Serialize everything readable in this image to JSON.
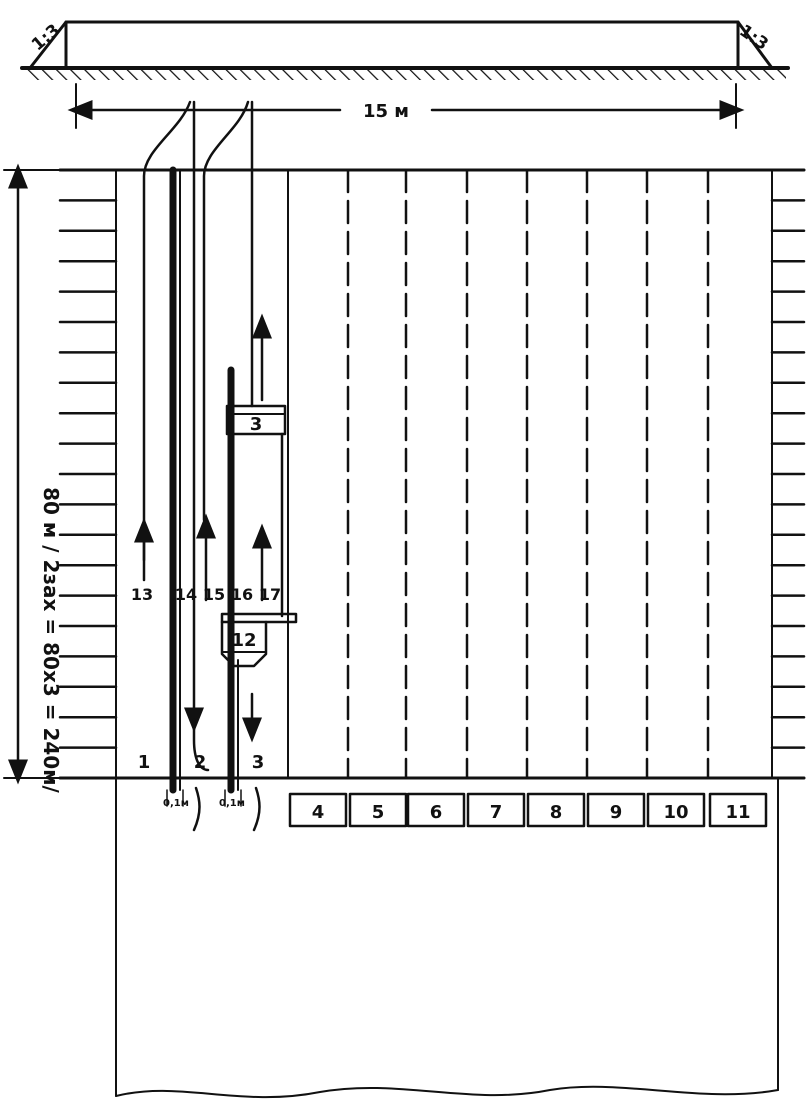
{
  "embankment": {
    "slope_left": "1:3",
    "slope_right": "1:3",
    "width_label": "15 м"
  },
  "side_dimension": {
    "label": "80 м / 2зах = 80х3 = 240м/"
  },
  "strip_labels": [
    "1",
    "2",
    "3"
  ],
  "machine_labels": {
    "roller_front": "3",
    "spreader": "12"
  },
  "path_labels": [
    "13",
    "14",
    "15",
    "16",
    "17"
  ],
  "bottom_boxes": [
    "4",
    "5",
    "6",
    "7",
    "8",
    "9",
    "10",
    "11"
  ],
  "gap_labels": [
    "0,1м",
    "0,1м"
  ]
}
